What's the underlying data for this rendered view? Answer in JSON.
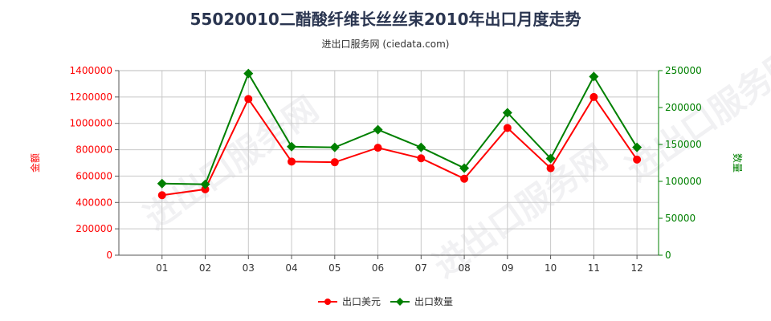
{
  "title": "55020010二醋酸纤维长丝丝束2010年出口月度走势",
  "subtitle": "进出口服务网 (ciedata.com)",
  "watermark": "进出口服务网",
  "colors": {
    "usd": "#ff0000",
    "qty": "#008000",
    "grid": "#c8c8c8",
    "axis": "#555555"
  },
  "chart_data": {
    "type": "line",
    "categories": [
      "01",
      "02",
      "03",
      "04",
      "05",
      "06",
      "07",
      "08",
      "09",
      "10",
      "11",
      "12"
    ],
    "y_left": {
      "label": "金额",
      "ylim": [
        0,
        1400000
      ],
      "ticks": [
        "0",
        "200000",
        "400000",
        "600000",
        "800000",
        "1000000",
        "1200000",
        "1400000"
      ]
    },
    "y_right": {
      "label": "数量",
      "ylim": [
        0,
        250000
      ],
      "ticks": [
        "0",
        "50000",
        "100000",
        "150000",
        "200000",
        "250000"
      ]
    },
    "series": [
      {
        "name": "出口美元",
        "axis": "left",
        "values": [
          455000,
          500000,
          1185000,
          710000,
          705000,
          815000,
          735000,
          580000,
          965000,
          660000,
          1200000,
          725000
        ]
      },
      {
        "name": "出口数量",
        "axis": "right",
        "values": [
          97000,
          96000,
          246000,
          147000,
          146000,
          170000,
          146000,
          118000,
          193000,
          131000,
          242000,
          146000
        ]
      }
    ],
    "grid": true,
    "legend_position": "bottom-center"
  }
}
